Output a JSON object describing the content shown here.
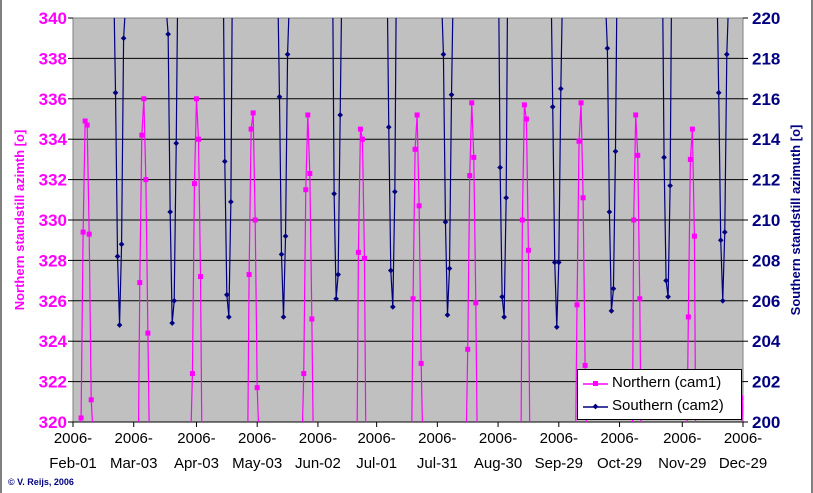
{
  "chart_data": {
    "type": "line",
    "title": "",
    "xlabel": "",
    "ylabel": "Northern standstill azimth [o]",
    "y2label": "Southern standstill azimuth [o]",
    "ylim": [
      320,
      340
    ],
    "y2lim": [
      200,
      220
    ],
    "xlim_days_from_2006_02_01": [
      0,
      331
    ],
    "y_ticks": [
      "320",
      "322",
      "324",
      "326",
      "328",
      "330",
      "332",
      "334",
      "336",
      "338",
      "340"
    ],
    "y2_ticks": [
      "200",
      "202",
      "204",
      "206",
      "208",
      "210",
      "212",
      "214",
      "216",
      "218",
      "220"
    ],
    "x_ticks": [
      {
        "day": 0,
        "l1": "2006-",
        "l2": "Feb-01"
      },
      {
        "day": 30,
        "l1": "2006-",
        "l2": "Mar-03"
      },
      {
        "day": 61,
        "l1": "2006-",
        "l2": "Apr-03"
      },
      {
        "day": 91,
        "l1": "2006-",
        "l2": "May-03"
      },
      {
        "day": 121,
        "l1": "2006-",
        "l2": "Jun-02"
      },
      {
        "day": 150,
        "l1": "2006-",
        "l2": "Jul-01"
      },
      {
        "day": 180,
        "l1": "2006-",
        "l2": "Jul-31"
      },
      {
        "day": 210,
        "l1": "2006-",
        "l2": "Aug-30"
      },
      {
        "day": 240,
        "l1": "2006-",
        "l2": "Sep-29"
      },
      {
        "day": 270,
        "l1": "2006-",
        "l2": "Oct-29"
      },
      {
        "day": 301,
        "l1": "2006-",
        "l2": "Nov-29"
      },
      {
        "day": 331,
        "l1": "2006-",
        "l2": "Dec-29"
      }
    ],
    "grid": true,
    "legend_position": "bottom-right",
    "series": [
      {
        "name": "Northern (cam1)",
        "axis": "left",
        "color": "#ff00ff",
        "marker": "square",
        "cycles": [
          [
            [
              4,
              320.2
            ],
            [
              5,
              329.4
            ],
            [
              6,
              334.9
            ],
            [
              7,
              334.7
            ],
            [
              8,
              329.3
            ],
            [
              9,
              321.1
            ]
          ],
          [
            [
              33,
              326.9
            ],
            [
              34,
              334.2
            ],
            [
              35,
              336.0
            ],
            [
              36,
              332.0
            ],
            [
              37,
              324.4
            ]
          ],
          [
            [
              59,
              322.4
            ],
            [
              60,
              331.8
            ],
            [
              61,
              336.0
            ],
            [
              62,
              334.0
            ],
            [
              63,
              327.2
            ]
          ],
          [
            [
              87,
              327.3
            ],
            [
              88,
              334.5
            ],
            [
              89,
              335.3
            ],
            [
              90,
              330.0
            ],
            [
              91,
              321.7
            ]
          ],
          [
            [
              114,
              322.4
            ],
            [
              115,
              331.5
            ],
            [
              116,
              335.2
            ],
            [
              117,
              332.3
            ],
            [
              118,
              325.1
            ]
          ],
          [
            [
              141,
              328.4
            ],
            [
              142,
              334.5
            ],
            [
              143,
              334.0
            ],
            [
              144,
              328.1
            ]
          ],
          [
            [
              168,
              326.1
            ],
            [
              169,
              333.5
            ],
            [
              170,
              335.2
            ],
            [
              171,
              330.7
            ],
            [
              172,
              322.9
            ]
          ],
          [
            [
              195,
              323.6
            ],
            [
              196,
              332.2
            ],
            [
              197,
              335.8
            ],
            [
              198,
              333.1
            ],
            [
              199,
              325.9
            ]
          ],
          [
            [
              222,
              330.0
            ],
            [
              223,
              335.7
            ],
            [
              224,
              335.0
            ],
            [
              225,
              328.5
            ]
          ],
          [
            [
              249,
              325.8
            ],
            [
              250,
              333.9
            ],
            [
              251,
              335.8
            ],
            [
              252,
              331.1
            ],
            [
              253,
              322.8
            ]
          ],
          [
            [
              277,
              330.0
            ],
            [
              278,
              335.2
            ],
            [
              279,
              333.2
            ],
            [
              280,
              326.1
            ]
          ],
          [
            [
              304,
              325.2
            ],
            [
              305,
              333.0
            ],
            [
              306,
              334.5
            ],
            [
              307,
              329.2
            ]
          ],
          [
            [
              331,
              321.2
            ]
          ]
        ]
      },
      {
        "name": "Southern (cam2)",
        "axis": "right",
        "color": "#000080",
        "marker": "diamond",
        "cycles": [
          [
            [
              21,
              216.3
            ],
            [
              22,
              208.2
            ],
            [
              23,
              204.8
            ],
            [
              24,
              208.8
            ],
            [
              25,
              219.0
            ]
          ],
          [
            [
              47,
              219.2
            ],
            [
              48,
              210.4
            ],
            [
              49,
              204.9
            ],
            [
              50,
              206.0
            ],
            [
              51,
              213.8
            ]
          ],
          [
            [
              75,
              212.9
            ],
            [
              76,
              206.3
            ],
            [
              77,
              205.2
            ],
            [
              78,
              210.9
            ]
          ],
          [
            [
              102,
              216.1
            ],
            [
              103,
              208.3
            ],
            [
              104,
              205.2
            ],
            [
              105,
              209.2
            ],
            [
              106,
              218.2
            ]
          ],
          [
            [
              129,
              211.3
            ],
            [
              130,
              206.1
            ],
            [
              131,
              207.3
            ],
            [
              132,
              215.2
            ]
          ],
          [
            [
              156,
              214.6
            ],
            [
              157,
              207.5
            ],
            [
              158,
              205.7
            ],
            [
              159,
              211.4
            ]
          ],
          [
            [
              183,
              218.2
            ],
            [
              184,
              209.9
            ],
            [
              185,
              205.3
            ],
            [
              186,
              207.6
            ],
            [
              187,
              216.2
            ]
          ],
          [
            [
              211,
              212.6
            ],
            [
              212,
              206.2
            ],
            [
              213,
              205.2
            ],
            [
              214,
              211.1
            ]
          ],
          [
            [
              237,
              215.6
            ],
            [
              238,
              207.9
            ],
            [
              239,
              204.7
            ],
            [
              240,
              207.9
            ],
            [
              241,
              216.5
            ]
          ],
          [
            [
              264,
              218.5
            ],
            [
              265,
              210.4
            ],
            [
              266,
              205.5
            ],
            [
              267,
              206.6
            ],
            [
              268,
              213.4
            ]
          ],
          [
            [
              292,
              213.1
            ],
            [
              293,
              207.0
            ],
            [
              294,
              206.2
            ],
            [
              295,
              211.7
            ]
          ],
          [
            [
              319,
              216.3
            ],
            [
              320,
              209.0
            ],
            [
              321,
              206.0
            ],
            [
              322,
              209.4
            ],
            [
              323,
              218.2
            ]
          ]
        ]
      }
    ]
  },
  "copyright": "© V. Reijs, 2006"
}
